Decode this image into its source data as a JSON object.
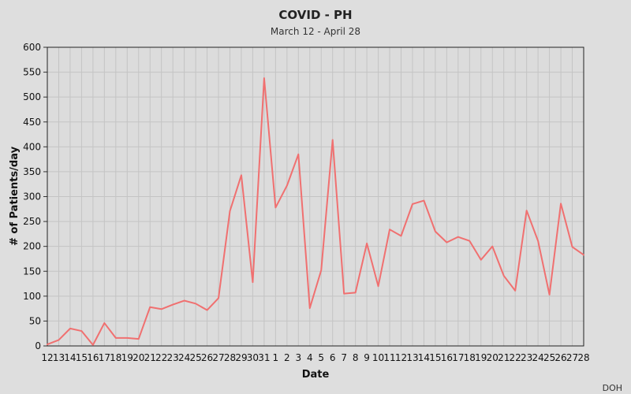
{
  "chart_data": {
    "type": "line",
    "title": "COVID - PH",
    "subtitle": "March 12 - April 28",
    "xlabel": "Date",
    "ylabel": "# of Patients/day",
    "ylim": [
      0,
      600
    ],
    "yticks": [
      0,
      50,
      100,
      150,
      200,
      250,
      300,
      350,
      400,
      450,
      500,
      550,
      600
    ],
    "categories": [
      "12",
      "13",
      "14",
      "15",
      "16",
      "17",
      "18",
      "19",
      "20",
      "21",
      "22",
      "23",
      "24",
      "25",
      "26",
      "27",
      "28",
      "29",
      "30",
      "31",
      "1",
      "2",
      "3",
      "4",
      "5",
      "6",
      "7",
      "8",
      "9",
      "10",
      "11",
      "12",
      "13",
      "14",
      "15",
      "16",
      "17",
      "18",
      "19",
      "20",
      "21",
      "22",
      "23",
      "24",
      "25",
      "26",
      "27",
      "28"
    ],
    "series": [
      {
        "name": "# of Patients/day",
        "color": "#f07070",
        "values": [
          3,
          12,
          35,
          30,
          2,
          46,
          16,
          16,
          14,
          78,
          74,
          83,
          91,
          85,
          72,
          96,
          271,
          343,
          128,
          538,
          278,
          322,
          385,
          76,
          152,
          414,
          105,
          107,
          206,
          120,
          234,
          221,
          285,
          292,
          230,
          208,
          219,
          211,
          173,
          200,
          141,
          111,
          272,
          211,
          103,
          286,
          199,
          183
        ]
      }
    ],
    "grid": true,
    "source": "DOH"
  }
}
